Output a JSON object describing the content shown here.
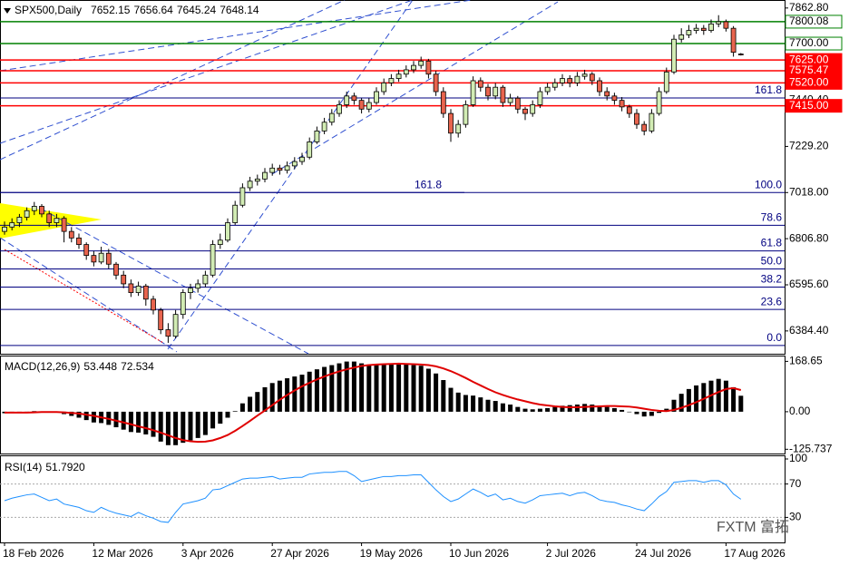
{
  "chart_data": {
    "type": "candlestick",
    "symbol": "SPX500,Daily",
    "watermark": "FXTM 富拓",
    "categories": [
      "18 Feb 2026",
      null,
      null,
      null,
      null,
      null,
      null,
      null,
      null,
      null,
      null,
      null,
      "12 Mar 2026",
      null,
      null,
      null,
      null,
      null,
      null,
      null,
      null,
      null,
      null,
      null,
      "3 Apr 2026",
      null,
      null,
      null,
      null,
      null,
      null,
      null,
      null,
      null,
      null,
      null,
      "27 Apr 2026",
      null,
      null,
      null,
      null,
      null,
      null,
      null,
      null,
      null,
      null,
      null,
      "19 May 2026",
      null,
      null,
      null,
      null,
      null,
      null,
      null,
      null,
      null,
      null,
      null,
      "10 Jun 2026",
      null,
      null,
      null,
      null,
      null,
      null,
      null,
      null,
      null,
      null,
      null,
      null,
      "2 Jul 2026",
      null,
      null,
      null,
      null,
      null,
      null,
      null,
      null,
      null,
      null,
      null,
      "24 Jul 2026",
      null,
      null,
      null,
      null,
      null,
      null,
      null,
      null,
      null,
      null,
      null,
      "17 Aug 2026",
      null,
      null
    ],
    "ohlc": [
      [
        6840,
        6885,
        6825,
        6860
      ],
      [
        6860,
        6900,
        6845,
        6880
      ],
      [
        6880,
        6920,
        6860,
        6905
      ],
      [
        6905,
        6950,
        6890,
        6935
      ],
      [
        6935,
        6975,
        6915,
        6955
      ],
      [
        6955,
        6965,
        6905,
        6920
      ],
      [
        6920,
        6935,
        6860,
        6880
      ],
      [
        6880,
        6920,
        6860,
        6900
      ],
      [
        6900,
        6910,
        6790,
        6840
      ],
      [
        6840,
        6860,
        6790,
        6810
      ],
      [
        6810,
        6830,
        6760,
        6780
      ],
      [
        6780,
        6790,
        6710,
        6730
      ],
      [
        6730,
        6750,
        6680,
        6700
      ],
      [
        6700,
        6770,
        6690,
        6740
      ],
      [
        6740,
        6760,
        6670,
        6690
      ],
      [
        6690,
        6700,
        6620,
        6640
      ],
      [
        6640,
        6660,
        6580,
        6600
      ],
      [
        6600,
        6620,
        6540,
        6560
      ],
      [
        6560,
        6610,
        6545,
        6590
      ],
      [
        6590,
        6600,
        6500,
        6530
      ],
      [
        6530,
        6545,
        6460,
        6480
      ],
      [
        6480,
        6490,
        6370,
        6390
      ],
      [
        6390,
        6420,
        6330,
        6360
      ],
      [
        6360,
        6480,
        6350,
        6460
      ],
      [
        6460,
        6575,
        6440,
        6560
      ],
      [
        6560,
        6600,
        6530,
        6580
      ],
      [
        6580,
        6620,
        6560,
        6600
      ],
      [
        6600,
        6660,
        6585,
        6640
      ],
      [
        6640,
        6800,
        6630,
        6780
      ],
      [
        6780,
        6830,
        6760,
        6800
      ],
      [
        6800,
        6900,
        6790,
        6880
      ],
      [
        6880,
        6980,
        6870,
        6960
      ],
      [
        6960,
        7060,
        6950,
        7040
      ],
      [
        7040,
        7090,
        7025,
        7070
      ],
      [
        7070,
        7100,
        7050,
        7080
      ],
      [
        7080,
        7130,
        7065,
        7110
      ],
      [
        7110,
        7150,
        7095,
        7130
      ],
      [
        7130,
        7145,
        7100,
        7120
      ],
      [
        7120,
        7160,
        7105,
        7140
      ],
      [
        7140,
        7180,
        7125,
        7160
      ],
      [
        7160,
        7200,
        7145,
        7180
      ],
      [
        7180,
        7270,
        7170,
        7250
      ],
      [
        7250,
        7320,
        7240,
        7300
      ],
      [
        7300,
        7360,
        7285,
        7340
      ],
      [
        7340,
        7400,
        7325,
        7380
      ],
      [
        7380,
        7440,
        7365,
        7420
      ],
      [
        7420,
        7480,
        7405,
        7460
      ],
      [
        7460,
        7475,
        7420,
        7440
      ],
      [
        7440,
        7450,
        7380,
        7400
      ],
      [
        7400,
        7450,
        7385,
        7430
      ],
      [
        7430,
        7500,
        7420,
        7480
      ],
      [
        7480,
        7540,
        7465,
        7520
      ],
      [
        7520,
        7560,
        7505,
        7540
      ],
      [
        7540,
        7580,
        7525,
        7560
      ],
      [
        7560,
        7600,
        7545,
        7580
      ],
      [
        7580,
        7620,
        7565,
        7600
      ],
      [
        7600,
        7640,
        7585,
        7620
      ],
      [
        7620,
        7630,
        7540,
        7560
      ],
      [
        7560,
        7575,
        7460,
        7480
      ],
      [
        7480,
        7500,
        7360,
        7380
      ],
      [
        7380,
        7400,
        7250,
        7290
      ],
      [
        7290,
        7350,
        7270,
        7330
      ],
      [
        7330,
        7440,
        7315,
        7420
      ],
      [
        7420,
        7550,
        7410,
        7530
      ],
      [
        7530,
        7545,
        7480,
        7500
      ],
      [
        7500,
        7515,
        7440,
        7460
      ],
      [
        7460,
        7520,
        7445,
        7500
      ],
      [
        7500,
        7510,
        7410,
        7430
      ],
      [
        7430,
        7470,
        7415,
        7450
      ],
      [
        7450,
        7460,
        7380,
        7400
      ],
      [
        7400,
        7410,
        7350,
        7380
      ],
      [
        7380,
        7440,
        7365,
        7420
      ],
      [
        7420,
        7500,
        7405,
        7480
      ],
      [
        7480,
        7520,
        7465,
        7500
      ],
      [
        7500,
        7540,
        7485,
        7520
      ],
      [
        7520,
        7560,
        7505,
        7540
      ],
      [
        7540,
        7555,
        7500,
        7520
      ],
      [
        7520,
        7570,
        7505,
        7550
      ],
      [
        7550,
        7580,
        7535,
        7560
      ],
      [
        7560,
        7570,
        7510,
        7530
      ],
      [
        7530,
        7545,
        7460,
        7480
      ],
      [
        7480,
        7500,
        7440,
        7460
      ],
      [
        7460,
        7475,
        7420,
        7440
      ],
      [
        7440,
        7455,
        7390,
        7410
      ],
      [
        7410,
        7420,
        7360,
        7380
      ],
      [
        7380,
        7400,
        7310,
        7330
      ],
      [
        7330,
        7345,
        7280,
        7300
      ],
      [
        7300,
        7400,
        7290,
        7380
      ],
      [
        7380,
        7500,
        7370,
        7480
      ],
      [
        7480,
        7590,
        7470,
        7570
      ],
      [
        7570,
        7740,
        7560,
        7720
      ],
      [
        7720,
        7770,
        7705,
        7740
      ],
      [
        7740,
        7785,
        7725,
        7760
      ],
      [
        7760,
        7790,
        7745,
        7770
      ],
      [
        7770,
        7785,
        7740,
        7760
      ],
      [
        7760,
        7810,
        7750,
        7790
      ],
      [
        7790,
        7830,
        7775,
        7800
      ],
      [
        7800,
        7810,
        7755,
        7770
      ],
      [
        7770,
        7780,
        7640,
        7660
      ],
      [
        7652.15,
        7656.64,
        7645.24,
        7648.14
      ]
    ],
    "up_color": "#d2ecb4",
    "down_color": "#e8644e",
    "ylim": [
      6280,
      7887
    ],
    "yticks": [
      {
        "value": 6384.4,
        "label": "6384.40"
      },
      {
        "value": 6595.6,
        "label": "6595.60"
      },
      {
        "value": 6806.8,
        "label": "6806.80"
      },
      {
        "value": 7018,
        "label": "7018.00"
      },
      {
        "value": 7229.2,
        "label": "7229.20"
      },
      {
        "value": 7440.4,
        "label": "7440.40"
      },
      {
        "value": 7862.8,
        "label": "7862.80"
      }
    ],
    "green_levels": [
      7800.08,
      {
        "value": 7700,
        "label": "7700.00"
      }
    ],
    "green_color": "#008000",
    "red_levels": [
      {
        "value": 7625,
        "label": "7625.00"
      },
      7575.47,
      {
        "value": 7520,
        "label": "7520.00"
      },
      {
        "value": 7415,
        "label": "7415.00"
      }
    ],
    "red_color": "#ff0000",
    "fib_levels": [
      {
        "value": 7451,
        "label": "161.8"
      },
      {
        "value": 7018,
        "label": "100.0"
      },
      {
        "value": 6868,
        "label": "78.6"
      },
      {
        "value": 6751,
        "label": "61.8"
      },
      {
        "value": 6668,
        "label": "50.0"
      },
      {
        "value": 6585,
        "label": "38.2"
      },
      {
        "value": 6483,
        "label": "23.6"
      },
      {
        "value": 6318,
        "label": "0.0"
      }
    ],
    "fib2_levels": [
      {
        "value": 7018,
        "label": "161.8"
      }
    ],
    "fib_color": "#000080",
    "macd": {
      "name": "MACD(12,26,9)",
      "ylim": [
        -140,
        185
      ],
      "yticks": [
        168.65,
        {
          "value": 0,
          "label": "0.00"
        },
        -125.737
      ],
      "histogram_color": "#000000",
      "signal_color": "#e00000",
      "histogram": [
        -5,
        -4,
        -2,
        0,
        2,
        1,
        -2,
        -3,
        -8,
        -14,
        -20,
        -28,
        -36,
        -38,
        -44,
        -52,
        -60,
        -68,
        -70,
        -76,
        -84,
        -100,
        -112,
        -112,
        -104,
        -96,
        -88,
        -78,
        -56,
        -40,
        -20,
        2,
        28,
        50,
        66,
        82,
        96,
        104,
        112,
        118,
        124,
        134,
        142,
        150,
        156,
        162,
        168,
        168,
        162,
        158,
        158,
        160,
        160,
        160,
        158,
        156,
        154,
        144,
        128,
        106,
        80,
        64,
        56,
        54,
        48,
        40,
        36,
        28,
        24,
        16,
        10,
        8,
        10,
        12,
        16,
        20,
        22,
        24,
        26,
        24,
        20,
        16,
        12,
        6,
        0,
        -8,
        -16,
        -14,
        -4,
        10,
        40,
        60,
        76,
        88,
        96,
        104,
        110,
        104,
        82,
        53.448
      ],
      "signal": [
        -3,
        -3,
        -3,
        -3,
        -2,
        -1,
        -1,
        -1,
        -2,
        -4,
        -6,
        -10,
        -14,
        -19,
        -24,
        -30,
        -36,
        -42,
        -49,
        -55,
        -62,
        -70,
        -79,
        -88,
        -95,
        -99,
        -101,
        -100,
        -96,
        -88,
        -78,
        -64,
        -48,
        -31,
        -13,
        4,
        22,
        40,
        56,
        71,
        85,
        97,
        108,
        118,
        127,
        135,
        142,
        148,
        153,
        156,
        158,
        159,
        160,
        161,
        160,
        159,
        158,
        156,
        152,
        145,
        136,
        125,
        113,
        100,
        88,
        76,
        65,
        56,
        48,
        41,
        35,
        29,
        24,
        21,
        18,
        16,
        15,
        15,
        16,
        17,
        18,
        19,
        19,
        18,
        17,
        14,
        10,
        6,
        3,
        2,
        6,
        13,
        22,
        32,
        43,
        55,
        66,
        76,
        79,
        72.534
      ]
    },
    "rsi": {
      "name": "RSI(14)",
      "current": {
        "value": 51.792,
        "label": "51.7920"
      },
      "ylim": [
        0,
        100
      ],
      "yticks": [
        100,
        70,
        30
      ],
      "levels": [
        70,
        30
      ],
      "color": "#1e90ff",
      "values": [
        50,
        53,
        55,
        57,
        58,
        54,
        50,
        52,
        46,
        44,
        42,
        38,
        36,
        42,
        38,
        35,
        33,
        31,
        36,
        32,
        29,
        25,
        24,
        36,
        46,
        48,
        50,
        53,
        63,
        64,
        68,
        72,
        76,
        77,
        77,
        78,
        79,
        76,
        77,
        78,
        78,
        82,
        83,
        84,
        84,
        85,
        85,
        80,
        73,
        75,
        77,
        79,
        79,
        80,
        80,
        81,
        81,
        72,
        63,
        55,
        49,
        52,
        58,
        64,
        60,
        55,
        58,
        51,
        53,
        49,
        47,
        51,
        56,
        57,
        58,
        59,
        56,
        59,
        60,
        56,
        51,
        49,
        48,
        45,
        43,
        40,
        38,
        46,
        55,
        61,
        72,
        73,
        74,
        74,
        72,
        74,
        74,
        69,
        58,
        51.792
      ]
    }
  }
}
